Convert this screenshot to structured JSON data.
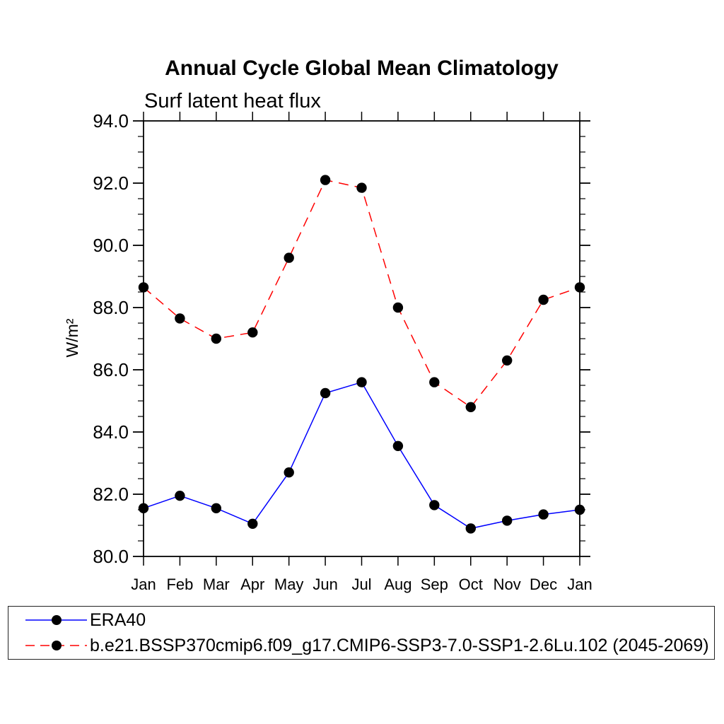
{
  "chart_data": {
    "type": "line",
    "title": "Annual Cycle Global Mean Climatology",
    "subtitle": "Surf latent heat flux",
    "ylabel": "W/m²",
    "xlabel": "",
    "categories": [
      "Jan",
      "Feb",
      "Mar",
      "Apr",
      "May",
      "Jun",
      "Jul",
      "Aug",
      "Sep",
      "Oct",
      "Nov",
      "Dec",
      "Jan"
    ],
    "ylim": [
      80.0,
      94.0
    ],
    "ytick_major_step": 2.0,
    "ytick_minor_step": 0.5,
    "ytick_labels": [
      "80.0",
      "82.0",
      "84.0",
      "86.0",
      "88.0",
      "90.0",
      "92.0",
      "94.0"
    ],
    "grid": false,
    "legend_position": "bottom-box",
    "series": [
      {
        "name": "ERA40",
        "color": "#0000ff",
        "line_style": "solid",
        "marker": "filled-circle",
        "marker_color": "#000000",
        "values": [
          81.55,
          81.95,
          81.55,
          81.05,
          82.7,
          85.25,
          85.6,
          83.55,
          81.65,
          80.9,
          81.15,
          81.35,
          81.5
        ]
      },
      {
        "name": "b.e21.BSSP370cmip6.f09_g17.CMIP6-SSP3-7.0-SSP1-2.6Lu.102 (2045-2069)",
        "color": "#ff0000",
        "line_style": "dashed",
        "marker": "filled-circle",
        "marker_color": "#000000",
        "values": [
          88.65,
          87.65,
          87.0,
          87.2,
          89.6,
          92.1,
          91.85,
          88.0,
          85.6,
          84.8,
          86.3,
          88.25,
          88.65
        ]
      }
    ]
  }
}
